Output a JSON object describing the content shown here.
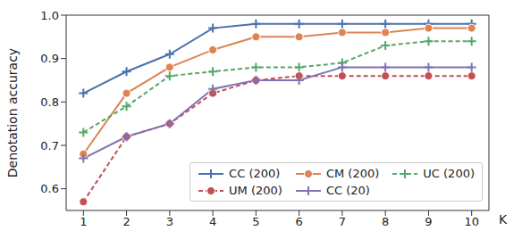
{
  "chart_data": {
    "type": "line",
    "x_label": "K",
    "y_label": "Denotation accuracy",
    "x": [
      1,
      2,
      3,
      4,
      5,
      6,
      7,
      8,
      9,
      10
    ],
    "xlim": [
      0.6,
      10.4
    ],
    "xticks": [
      1,
      2,
      3,
      4,
      5,
      6,
      7,
      8,
      9,
      10
    ],
    "ylim": [
      0.55,
      1.0
    ],
    "yticks": [
      0.6,
      0.7,
      0.8,
      0.9,
      {
        "value": 1,
        "label": "1.0"
      }
    ],
    "grid": false,
    "legend": "lower right",
    "series": [
      {
        "name": "CC (200)",
        "color": "#4c72b0",
        "marker": "plus",
        "line_style": "solid",
        "values": [
          0.82,
          0.87,
          0.91,
          0.97,
          0.98,
          0.98,
          0.98,
          0.98,
          0.98,
          0.98
        ]
      },
      {
        "name": "CM (200)",
        "color": "#dd8452",
        "marker": "circle",
        "line_style": "solid",
        "values": [
          0.68,
          0.82,
          0.88,
          0.92,
          0.95,
          0.95,
          0.96,
          0.96,
          0.97,
          0.97
        ]
      },
      {
        "name": "UC (200)",
        "color": "#55a868",
        "marker": "plus",
        "line_style": "dashed",
        "values": [
          0.73,
          0.79,
          0.86,
          0.87,
          0.88,
          0.88,
          0.89,
          0.93,
          0.94,
          0.94
        ]
      },
      {
        "name": "UM (200)",
        "color": "#c44e52",
        "marker": "circle",
        "line_style": "dashed",
        "values": [
          0.57,
          0.72,
          0.75,
          0.82,
          0.85,
          0.86,
          0.86,
          0.86,
          0.86,
          0.86
        ]
      },
      {
        "name": "CC (20)",
        "color": "#8172b3",
        "marker": "plus",
        "line_style": "solid",
        "values": [
          0.67,
          0.72,
          0.75,
          0.83,
          0.85,
          0.85,
          0.88,
          0.88,
          0.88,
          0.88
        ]
      }
    ]
  }
}
